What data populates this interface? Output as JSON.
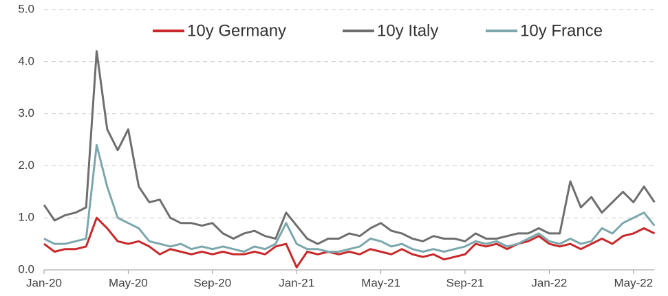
{
  "chart_data": {
    "type": "line",
    "categories": [
      "Jan-20",
      null,
      null,
      null,
      null,
      null,
      null,
      null,
      "May-20",
      null,
      null,
      null,
      null,
      null,
      null,
      null,
      "Sep-20",
      null,
      null,
      null,
      null,
      null,
      null,
      null,
      "Jan-21",
      null,
      null,
      null,
      null,
      null,
      null,
      null,
      "May-21",
      null,
      null,
      null,
      null,
      null,
      null,
      null,
      "Sep-21",
      null,
      null,
      null,
      null,
      null,
      null,
      null,
      "Jan-22",
      null,
      null,
      null,
      null,
      null,
      null,
      null,
      "May-22",
      null,
      null
    ],
    "series": [
      {
        "name": "10y Germany",
        "color": "#c8282a",
        "values": [
          0.5,
          0.35,
          0.4,
          0.4,
          0.45,
          1.0,
          0.8,
          0.55,
          0.5,
          0.55,
          0.45,
          0.3,
          0.4,
          0.35,
          0.3,
          0.35,
          0.3,
          0.35,
          0.3,
          0.3,
          0.35,
          0.3,
          0.45,
          0.5,
          0.05,
          0.35,
          0.3,
          0.35,
          0.3,
          0.35,
          0.3,
          0.4,
          0.35,
          0.3,
          0.4,
          0.3,
          0.25,
          0.3,
          0.2,
          0.25,
          0.3,
          0.5,
          0.45,
          0.5,
          0.4,
          0.5,
          0.55,
          0.65,
          0.5,
          0.45,
          0.5,
          0.4,
          0.5,
          0.6,
          0.5,
          0.65,
          0.7,
          0.8,
          0.7
        ]
      },
      {
        "name": "10y Italy",
        "color": "#6e6e6e",
        "values": [
          1.25,
          0.95,
          1.05,
          1.1,
          1.2,
          4.2,
          2.7,
          2.3,
          2.7,
          1.6,
          1.3,
          1.35,
          1.0,
          0.9,
          0.9,
          0.85,
          0.9,
          0.7,
          0.6,
          0.7,
          0.75,
          0.65,
          0.6,
          1.1,
          0.85,
          0.6,
          0.5,
          0.6,
          0.6,
          0.7,
          0.65,
          0.8,
          0.9,
          0.75,
          0.7,
          0.6,
          0.55,
          0.65,
          0.6,
          0.6,
          0.55,
          0.7,
          0.6,
          0.6,
          0.65,
          0.7,
          0.7,
          0.8,
          0.7,
          0.7,
          1.7,
          1.2,
          1.4,
          1.1,
          1.3,
          1.5,
          1.3,
          1.6,
          1.3
        ]
      },
      {
        "name": "10y France",
        "color": "#7ba7ac",
        "values": [
          0.6,
          0.5,
          0.5,
          0.55,
          0.6,
          2.4,
          1.6,
          1.0,
          0.9,
          0.8,
          0.55,
          0.5,
          0.45,
          0.5,
          0.4,
          0.45,
          0.4,
          0.45,
          0.4,
          0.35,
          0.45,
          0.4,
          0.5,
          0.9,
          0.5,
          0.4,
          0.4,
          0.35,
          0.35,
          0.4,
          0.45,
          0.6,
          0.55,
          0.45,
          0.5,
          0.4,
          0.35,
          0.4,
          0.35,
          0.4,
          0.45,
          0.55,
          0.5,
          0.55,
          0.45,
          0.5,
          0.6,
          0.7,
          0.55,
          0.5,
          0.6,
          0.5,
          0.55,
          0.8,
          0.7,
          0.9,
          1.0,
          1.1,
          0.85
        ]
      }
    ],
    "ylim": [
      0,
      5
    ],
    "yticks": [
      {
        "value": 0,
        "label": "0.0"
      },
      {
        "value": 1,
        "label": "1.0"
      },
      {
        "value": 2,
        "label": "2.0"
      },
      {
        "value": 3,
        "label": "3.0"
      },
      {
        "value": 4,
        "label": "4.0"
      },
      {
        "value": 5,
        "label": "5.0"
      }
    ],
    "grid": true
  }
}
